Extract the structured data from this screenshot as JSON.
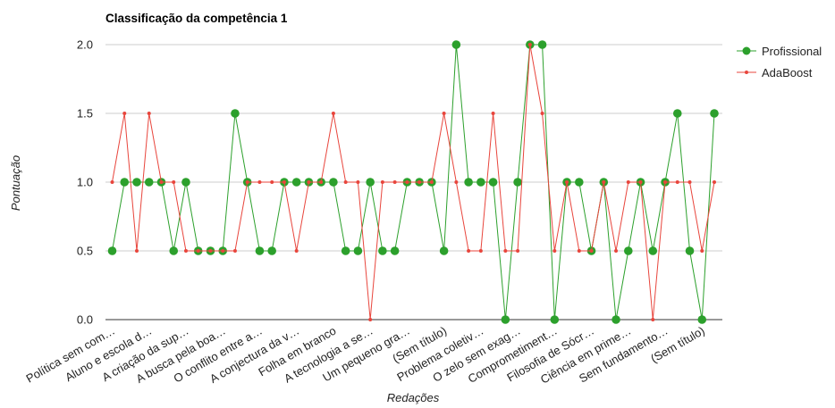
{
  "chart_data": {
    "type": "line",
    "title": "Classificação da competência 1",
    "xlabel": "Redações",
    "ylabel": "Pontuação",
    "ylim": [
      0,
      2
    ],
    "yticks": [
      "0.0",
      "0.5",
      "1.0",
      "1.5",
      "2.0"
    ],
    "yticks_values": [
      0,
      0.5,
      1.0,
      1.5,
      2.0
    ],
    "grid": true,
    "legend_position": "right",
    "tick_labels": [
      "Política sem com…",
      "Aluno e escola d…",
      "A criação da sup…",
      "A busca pela boa…",
      "O conflito entre a…",
      "A conjectura da v…",
      "Folha em branco",
      "A tecnologia a se…",
      "Um pequeno gra…",
      "(Sem título)",
      "Problema coletiv…",
      "O zelo sem exag…",
      "Comprometiment…",
      "Filosofia de Sócr…",
      "Ciência em prime…",
      "Sem fundamento…",
      "(Sem título)"
    ],
    "tick_label_indices": [
      0,
      3,
      6,
      9,
      12,
      15,
      18,
      21,
      24,
      27,
      30,
      33,
      36,
      39,
      42,
      45,
      48
    ],
    "series": [
      {
        "name": "Profissional",
        "color": "#2ca02c",
        "marker": "large-circle",
        "values": [
          0.5,
          1,
          1,
          1,
          1,
          0.5,
          1,
          0.5,
          0.5,
          0.5,
          1.5,
          1,
          0.5,
          0.5,
          1,
          1,
          1,
          1,
          1,
          0.5,
          0.5,
          1,
          0.5,
          0.5,
          1,
          1,
          1,
          0.5,
          2,
          1,
          1,
          1,
          0,
          1,
          2,
          2,
          0,
          1,
          1,
          0.5,
          1,
          0,
          0.5,
          1,
          0.5,
          1,
          1.5,
          0.5,
          0,
          1.5
        ]
      },
      {
        "name": "AdaBoost",
        "color": "#e8453c",
        "marker": "small-dot",
        "values": [
          1,
          1.5,
          0.5,
          1.5,
          1,
          1,
          0.5,
          0.5,
          0.5,
          0.5,
          0.5,
          1,
          1,
          1,
          1,
          0.5,
          1,
          1,
          1.5,
          1,
          1,
          0,
          1,
          1,
          1,
          1,
          1,
          1.5,
          1,
          0.5,
          0.5,
          1.5,
          0.5,
          0.5,
          2,
          1.5,
          0.5,
          1,
          0.5,
          0.5,
          1,
          0.5,
          1,
          1,
          0,
          1,
          1,
          1,
          0.5,
          1
        ]
      }
    ]
  }
}
